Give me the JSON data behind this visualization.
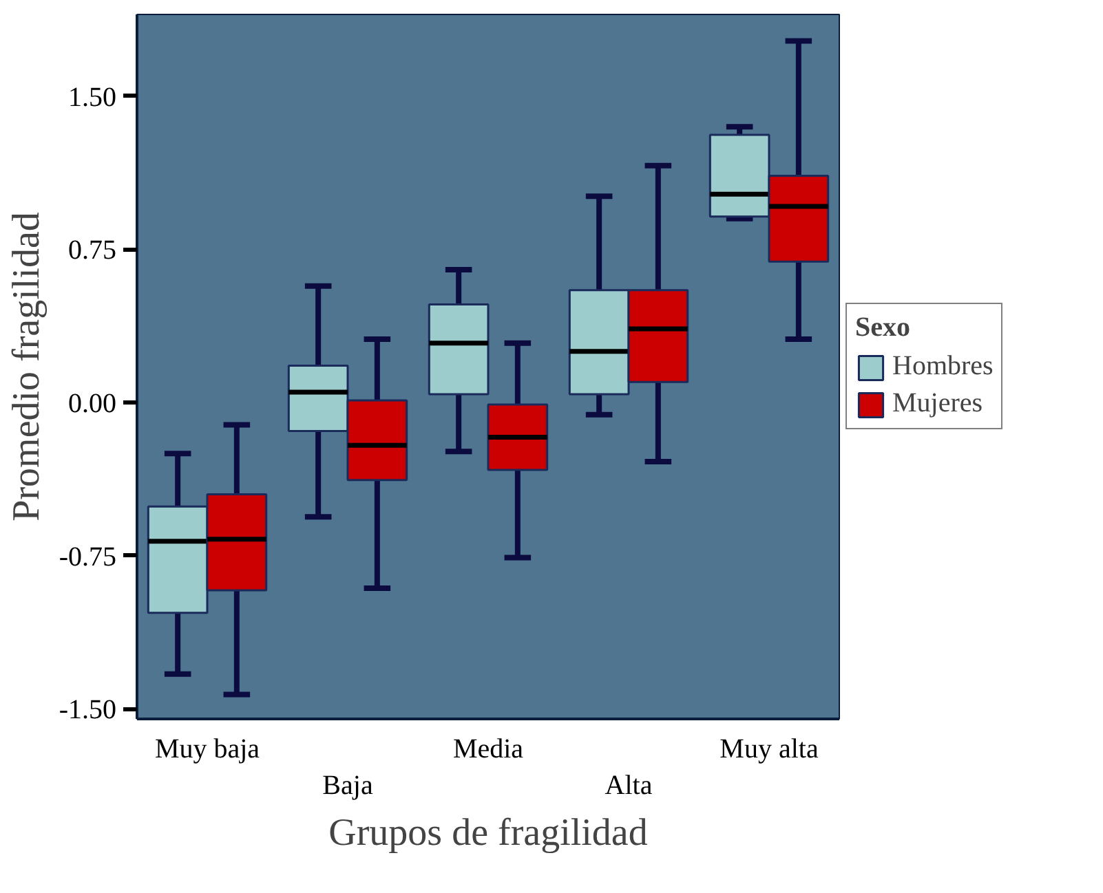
{
  "chart_data": {
    "type": "box",
    "xlabel": "Grupos de fragilidad",
    "ylabel": "Promedio fragilidad",
    "legend_title": "Sexo",
    "legend": "right",
    "grid": false,
    "categories": [
      "Muy baja",
      "Baja",
      "Media",
      "Alta",
      "Muy alta"
    ],
    "ylim": [
      -1.55,
      1.9
    ],
    "yticks": [
      {
        "value": -1.5,
        "label": "-1.50"
      },
      {
        "value": -0.75,
        "label": "-0.75"
      },
      {
        "value": 0,
        "label": "0.00"
      },
      {
        "value": 0.75,
        "label": "0.75"
      },
      {
        "value": 1.5,
        "label": "1.50"
      }
    ],
    "series": [
      {
        "name": "Hombres",
        "color": "#9ccccc",
        "boxes": [
          {
            "low": -1.33,
            "q1": -1.03,
            "median": -0.68,
            "q3": -0.51,
            "high": -0.25
          },
          {
            "low": -0.56,
            "q1": -0.14,
            "median": 0.05,
            "q3": 0.18,
            "high": 0.57
          },
          {
            "low": -0.24,
            "q1": 0.04,
            "median": 0.29,
            "q3": 0.48,
            "high": 0.65
          },
          {
            "low": -0.06,
            "q1": 0.04,
            "median": 0.25,
            "q3": 0.55,
            "high": 1.01
          },
          {
            "low": 0.9,
            "q1": 0.91,
            "median": 1.02,
            "q3": 1.31,
            "high": 1.35
          }
        ]
      },
      {
        "name": "Mujeres",
        "color": "#cc0000",
        "boxes": [
          {
            "low": -1.43,
            "q1": -0.92,
            "median": -0.67,
            "q3": -0.45,
            "high": -0.11
          },
          {
            "low": -0.91,
            "q1": -0.38,
            "median": -0.21,
            "q3": 0.01,
            "high": 0.31
          },
          {
            "low": -0.76,
            "q1": -0.33,
            "median": -0.17,
            "q3": -0.01,
            "high": 0.29
          },
          {
            "low": -0.29,
            "q1": 0.1,
            "median": 0.36,
            "q3": 0.55,
            "high": 1.16
          },
          {
            "low": 0.31,
            "q1": 0.69,
            "median": 0.96,
            "q3": 1.11,
            "high": 1.77
          }
        ]
      }
    ]
  }
}
